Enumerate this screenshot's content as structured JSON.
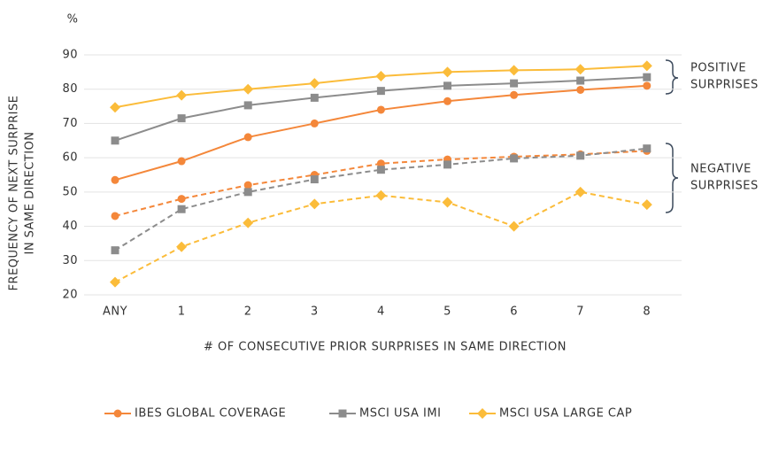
{
  "chart_data": {
    "type": "line",
    "y_unit": "%",
    "y_label": [
      "FREQUENCY OF NEXT SURPRISE",
      "IN SAME DIRECTION"
    ],
    "x_label": "# OF CONSECUTIVE PRIOR SURPRISES IN SAME DIRECTION",
    "categories": [
      "ANY",
      "1",
      "2",
      "3",
      "4",
      "5",
      "6",
      "7",
      "8"
    ],
    "ylim": [
      20,
      90
    ],
    "yticks": [
      20,
      30,
      40,
      50,
      60,
      70,
      80,
      90
    ],
    "grid": true,
    "annotations": [
      {
        "lines": [
          "POSITIVE",
          "SURPRISES"
        ]
      },
      {
        "lines": [
          "NEGATIVE",
          "SURPRISES"
        ]
      }
    ],
    "series": [
      {
        "name": "IBES GLOBAL COVERAGE",
        "color": "#f4873a",
        "marker": "circle",
        "values": [
          53.5,
          59,
          66,
          70,
          74,
          76.5,
          78.3,
          79.8,
          81
        ],
        "negative_values": [
          43,
          48,
          52,
          55,
          58.3,
          59.5,
          60.3,
          61,
          62
        ]
      },
      {
        "name": "MSCI USA IMI",
        "color": "#8c8c8c",
        "marker": "square",
        "values": [
          65,
          71.5,
          75.3,
          77.5,
          79.5,
          81,
          81.7,
          82.5,
          83.5
        ],
        "negative_values": [
          33,
          45,
          50,
          53.7,
          56.5,
          58,
          59.8,
          60.6,
          62.7
        ]
      },
      {
        "name": "MSCI USA LARGE CAP",
        "color": "#fbbc3a",
        "marker": "diamond",
        "values": [
          74.7,
          78.2,
          80,
          81.7,
          83.8,
          85,
          85.5,
          85.8,
          86.8
        ],
        "negative_values": [
          23.7,
          34,
          41,
          46.5,
          49,
          47,
          40,
          50,
          46.3
        ]
      }
    ]
  }
}
